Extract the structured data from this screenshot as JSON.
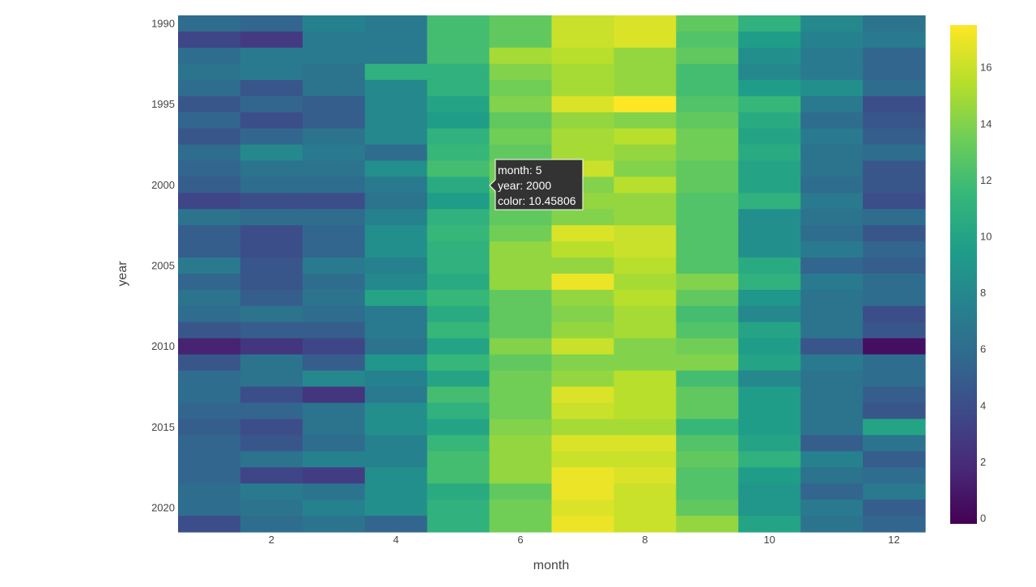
{
  "chart_data": {
    "type": "heatmap",
    "xlabel": "month",
    "ylabel": "year",
    "x": [
      1,
      2,
      3,
      4,
      5,
      6,
      7,
      8,
      9,
      10,
      11,
      12
    ],
    "x_ticks": [
      2,
      4,
      6,
      8,
      10,
      12
    ],
    "x_tick_labels": [
      "2",
      "4",
      "6",
      "8",
      "10",
      "12"
    ],
    "y": [
      1990,
      1991,
      1992,
      1993,
      1994,
      1995,
      1996,
      1997,
      1998,
      1999,
      2000,
      2001,
      2002,
      2003,
      2004,
      2005,
      2006,
      2007,
      2008,
      2009,
      2010,
      2011,
      2012,
      2013,
      2014,
      2015,
      2016,
      2017,
      2018,
      2019,
      2020,
      2021
    ],
    "y_ticks": [
      1990,
      1995,
      2000,
      2005,
      2010,
      2015,
      2020
    ],
    "y_tick_labels": [
      "1990",
      "1995",
      "2000",
      "2005",
      "2010",
      "2015",
      "2020"
    ],
    "z": [
      [
        6.0,
        5.5,
        7.5,
        7.0,
        12.0,
        13.0,
        16.0,
        16.5,
        13.0,
        11.0,
        8.0,
        6.5
      ],
      [
        3.5,
        2.8,
        7.0,
        7.0,
        12.0,
        13.0,
        16.0,
        16.5,
        12.5,
        9.5,
        7.5,
        7.0
      ],
      [
        6.0,
        7.0,
        7.0,
        7.0,
        12.0,
        15.0,
        15.5,
        14.5,
        13.0,
        8.5,
        7.0,
        5.5
      ],
      [
        6.5,
        7.0,
        6.5,
        11.0,
        11.0,
        14.0,
        15.0,
        14.5,
        12.0,
        8.0,
        7.0,
        5.5
      ],
      [
        6.0,
        4.5,
        6.5,
        8.0,
        11.0,
        13.5,
        15.0,
        14.5,
        12.0,
        9.5,
        8.5,
        6.0
      ],
      [
        4.5,
        5.5,
        5.0,
        8.0,
        10.0,
        14.0,
        16.5,
        17.5,
        12.5,
        11.5,
        7.0,
        4.0
      ],
      [
        5.5,
        4.0,
        5.0,
        8.0,
        9.5,
        13.0,
        14.5,
        14.0,
        13.0,
        10.5,
        6.0,
        4.5
      ],
      [
        4.5,
        5.5,
        6.5,
        8.0,
        11.0,
        13.5,
        15.0,
        15.5,
        13.5,
        10.0,
        7.0,
        5.0
      ],
      [
        6.0,
        8.0,
        7.0,
        6.0,
        11.5,
        13.0,
        15.0,
        14.5,
        13.5,
        10.5,
        6.5,
        6.0
      ],
      [
        5.5,
        6.5,
        6.5,
        8.5,
        12.0,
        13.5,
        16.0,
        14.0,
        13.0,
        10.0,
        6.5,
        4.5
      ],
      [
        5.0,
        6.0,
        6.0,
        7.0,
        10.45806,
        13.5,
        14.0,
        15.5,
        13.0,
        10.0,
        6.0,
        4.5
      ],
      [
        3.5,
        4.0,
        4.0,
        6.5,
        9.5,
        13.0,
        14.5,
        14.5,
        12.5,
        11.0,
        7.0,
        4.0
      ],
      [
        6.5,
        6.0,
        6.0,
        7.5,
        11.0,
        13.0,
        14.0,
        14.5,
        12.5,
        8.5,
        6.5,
        6.0
      ],
      [
        5.0,
        4.0,
        5.5,
        8.5,
        11.5,
        13.5,
        16.5,
        16.0,
        12.5,
        8.5,
        6.0,
        4.5
      ],
      [
        5.0,
        4.0,
        5.5,
        8.5,
        11.0,
        14.5,
        15.5,
        16.0,
        12.5,
        8.5,
        7.0,
        5.5
      ],
      [
        7.0,
        4.5,
        7.0,
        7.5,
        11.0,
        14.5,
        14.5,
        15.5,
        12.5,
        10.5,
        5.5,
        5.0
      ],
      [
        5.5,
        4.5,
        6.0,
        8.0,
        10.5,
        14.5,
        17.0,
        15.0,
        14.0,
        11.0,
        7.0,
        6.0
      ],
      [
        6.5,
        5.0,
        6.5,
        10.0,
        11.5,
        13.0,
        14.5,
        15.5,
        13.0,
        9.0,
        6.5,
        6.0
      ],
      [
        6.0,
        6.5,
        6.0,
        7.0,
        10.5,
        13.0,
        14.0,
        15.0,
        12.0,
        8.0,
        6.5,
        4.0
      ],
      [
        4.5,
        5.0,
        5.0,
        7.0,
        11.5,
        13.0,
        14.5,
        15.0,
        12.5,
        10.0,
        6.5,
        4.5
      ],
      [
        1.5,
        2.5,
        3.5,
        6.5,
        10.0,
        14.0,
        16.0,
        14.0,
        13.5,
        9.5,
        4.5,
        0.5
      ],
      [
        4.5,
        6.5,
        5.0,
        9.0,
        11.5,
        13.0,
        14.0,
        14.0,
        14.0,
        10.0,
        7.0,
        6.0
      ],
      [
        6.0,
        6.5,
        8.0,
        7.5,
        10.0,
        13.5,
        14.5,
        15.5,
        12.0,
        8.0,
        6.5,
        6.0
      ],
      [
        6.0,
        4.0,
        2.5,
        7.0,
        12.0,
        13.5,
        16.5,
        15.5,
        13.0,
        9.5,
        6.5,
        5.0
      ],
      [
        5.5,
        5.5,
        6.5,
        8.5,
        11.0,
        13.5,
        16.0,
        15.5,
        13.0,
        9.5,
        6.5,
        4.5
      ],
      [
        5.0,
        4.0,
        6.5,
        8.5,
        10.0,
        14.0,
        15.0,
        15.0,
        11.5,
        9.5,
        6.5,
        10.0
      ],
      [
        5.5,
        4.5,
        6.0,
        7.5,
        11.5,
        14.5,
        16.5,
        16.5,
        12.5,
        10.0,
        5.0,
        6.5
      ],
      [
        5.5,
        6.5,
        7.5,
        7.5,
        12.0,
        14.5,
        16.0,
        16.0,
        13.0,
        11.0,
        7.5,
        5.0
      ],
      [
        5.5,
        3.5,
        3.0,
        8.5,
        12.0,
        14.5,
        17.0,
        16.5,
        12.5,
        9.5,
        6.5,
        6.0
      ],
      [
        6.0,
        7.0,
        6.5,
        8.5,
        10.5,
        13.0,
        17.0,
        16.0,
        12.5,
        9.0,
        5.5,
        7.0
      ],
      [
        6.0,
        6.5,
        7.5,
        8.5,
        11.0,
        13.5,
        16.5,
        16.0,
        13.0,
        9.0,
        7.0,
        5.0
      ],
      [
        4.0,
        6.0,
        6.5,
        5.5,
        11.0,
        13.5,
        17.0,
        16.0,
        14.5,
        10.0,
        6.5,
        5.5
      ]
    ],
    "zmin": -0.2,
    "zmax": 17.5,
    "colorscale": "viridis",
    "colorbar_ticks": [
      0,
      2,
      4,
      6,
      8,
      10,
      12,
      14,
      16
    ],
    "colorbar_tick_labels": [
      "0",
      "2",
      "4",
      "6",
      "8",
      "10",
      "12",
      "14",
      "16"
    ],
    "hover": {
      "month_line": "month: 5",
      "year_line": "year: 2000",
      "color_line": "color: 10.45806",
      "bgcolor": "#333333",
      "bordercolor": "#ffffff"
    }
  }
}
